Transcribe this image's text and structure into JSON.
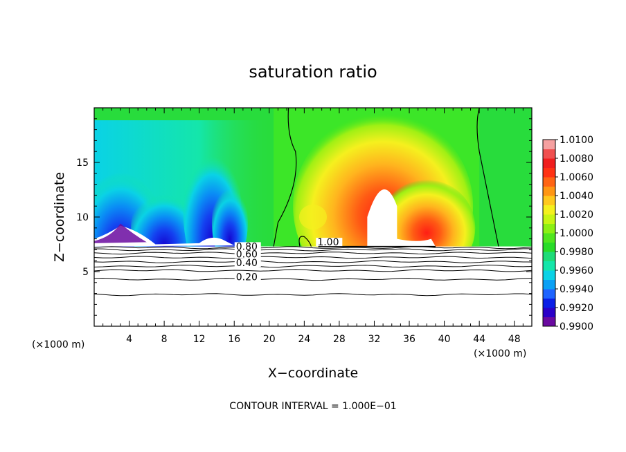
{
  "chart_data": {
    "type": "heatmap",
    "title": "saturation ratio",
    "xlabel": "X−coordinate",
    "ylabel": "Z−coordinate",
    "x_unit_left": "(×1000 m)",
    "x_unit_right": "(×1000 m)",
    "xlim": [
      0,
      50
    ],
    "ylim": [
      0,
      20
    ],
    "x_ticks": [
      4,
      8,
      12,
      16,
      20,
      24,
      28,
      32,
      36,
      40,
      44,
      48
    ],
    "y_ticks": [
      5,
      10,
      15
    ],
    "colorbar": {
      "labels": [
        "1.0100",
        "1.0080",
        "1.0060",
        "1.0040",
        "1.0020",
        "1.0000",
        "0.9980",
        "0.9960",
        "0.9940",
        "0.9920",
        "0.9900"
      ],
      "range": [
        0.99,
        1.01
      ],
      "colors": [
        "#6a0aa0",
        "#2a00c8",
        "#0a1ee6",
        "#1e64ff",
        "#0aa0f5",
        "#0ad2e6",
        "#14e6aa",
        "#1edc78",
        "#28dc28",
        "#50e61e",
        "#8cf014",
        "#c8f514",
        "#f5f01e",
        "#ffc81e",
        "#ff9614",
        "#ff6414",
        "#ff3214",
        "#f01e1e",
        "#f05050",
        "#f5a0a0"
      ]
    },
    "contour_labels": [
      {
        "text": "1.00",
        "x": 25.5,
        "z": 7.4
      },
      {
        "text": "0.80",
        "x": 16.2,
        "z": 7.0
      },
      {
        "text": "0.60",
        "x": 16.2,
        "z": 6.3
      },
      {
        "text": "0.40",
        "x": 16.2,
        "z": 5.5
      },
      {
        "text": "0.20",
        "x": 16.2,
        "z": 4.2
      }
    ],
    "footer": "CONTOUR INTERVAL = 1.000E−01"
  }
}
